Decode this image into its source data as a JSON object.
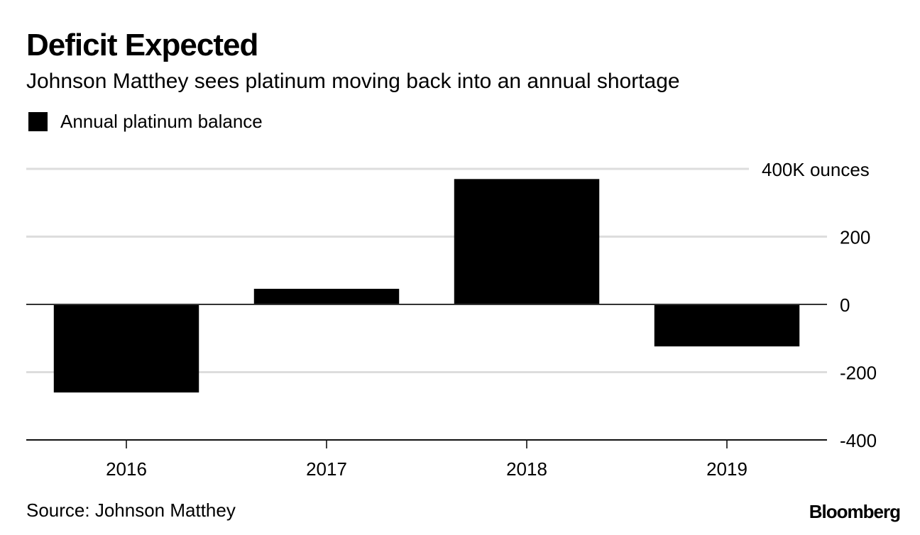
{
  "title": "Deficit Expected",
  "subtitle": "Johnson Matthey sees platinum moving back into an annual shortage",
  "legend": {
    "label": "Annual platinum balance",
    "color": "#000000"
  },
  "source": "Source: Johnson Matthey",
  "brand": "Bloomberg",
  "chart_data": {
    "type": "bar",
    "title": "Deficit Expected",
    "subtitle": "Johnson Matthey sees platinum moving back into an annual shortage",
    "xlabel": "",
    "ylabel": "K ounces",
    "categories": [
      "2016",
      "2017",
      "2018",
      "2019"
    ],
    "series": [
      {
        "name": "Annual platinum balance",
        "values": [
          -260,
          46,
          370,
          -124
        ],
        "color": "#000000"
      }
    ],
    "ylim": [
      -400,
      400
    ],
    "yticks": [
      400,
      200,
      0,
      -200,
      -400
    ],
    "ytick_labels": [
      "400K ounces",
      "200",
      "0",
      "-200",
      "-400"
    ],
    "grid": true,
    "grid_color": "#dddddd",
    "legend_position": "top-left",
    "y_axis_side": "right"
  }
}
